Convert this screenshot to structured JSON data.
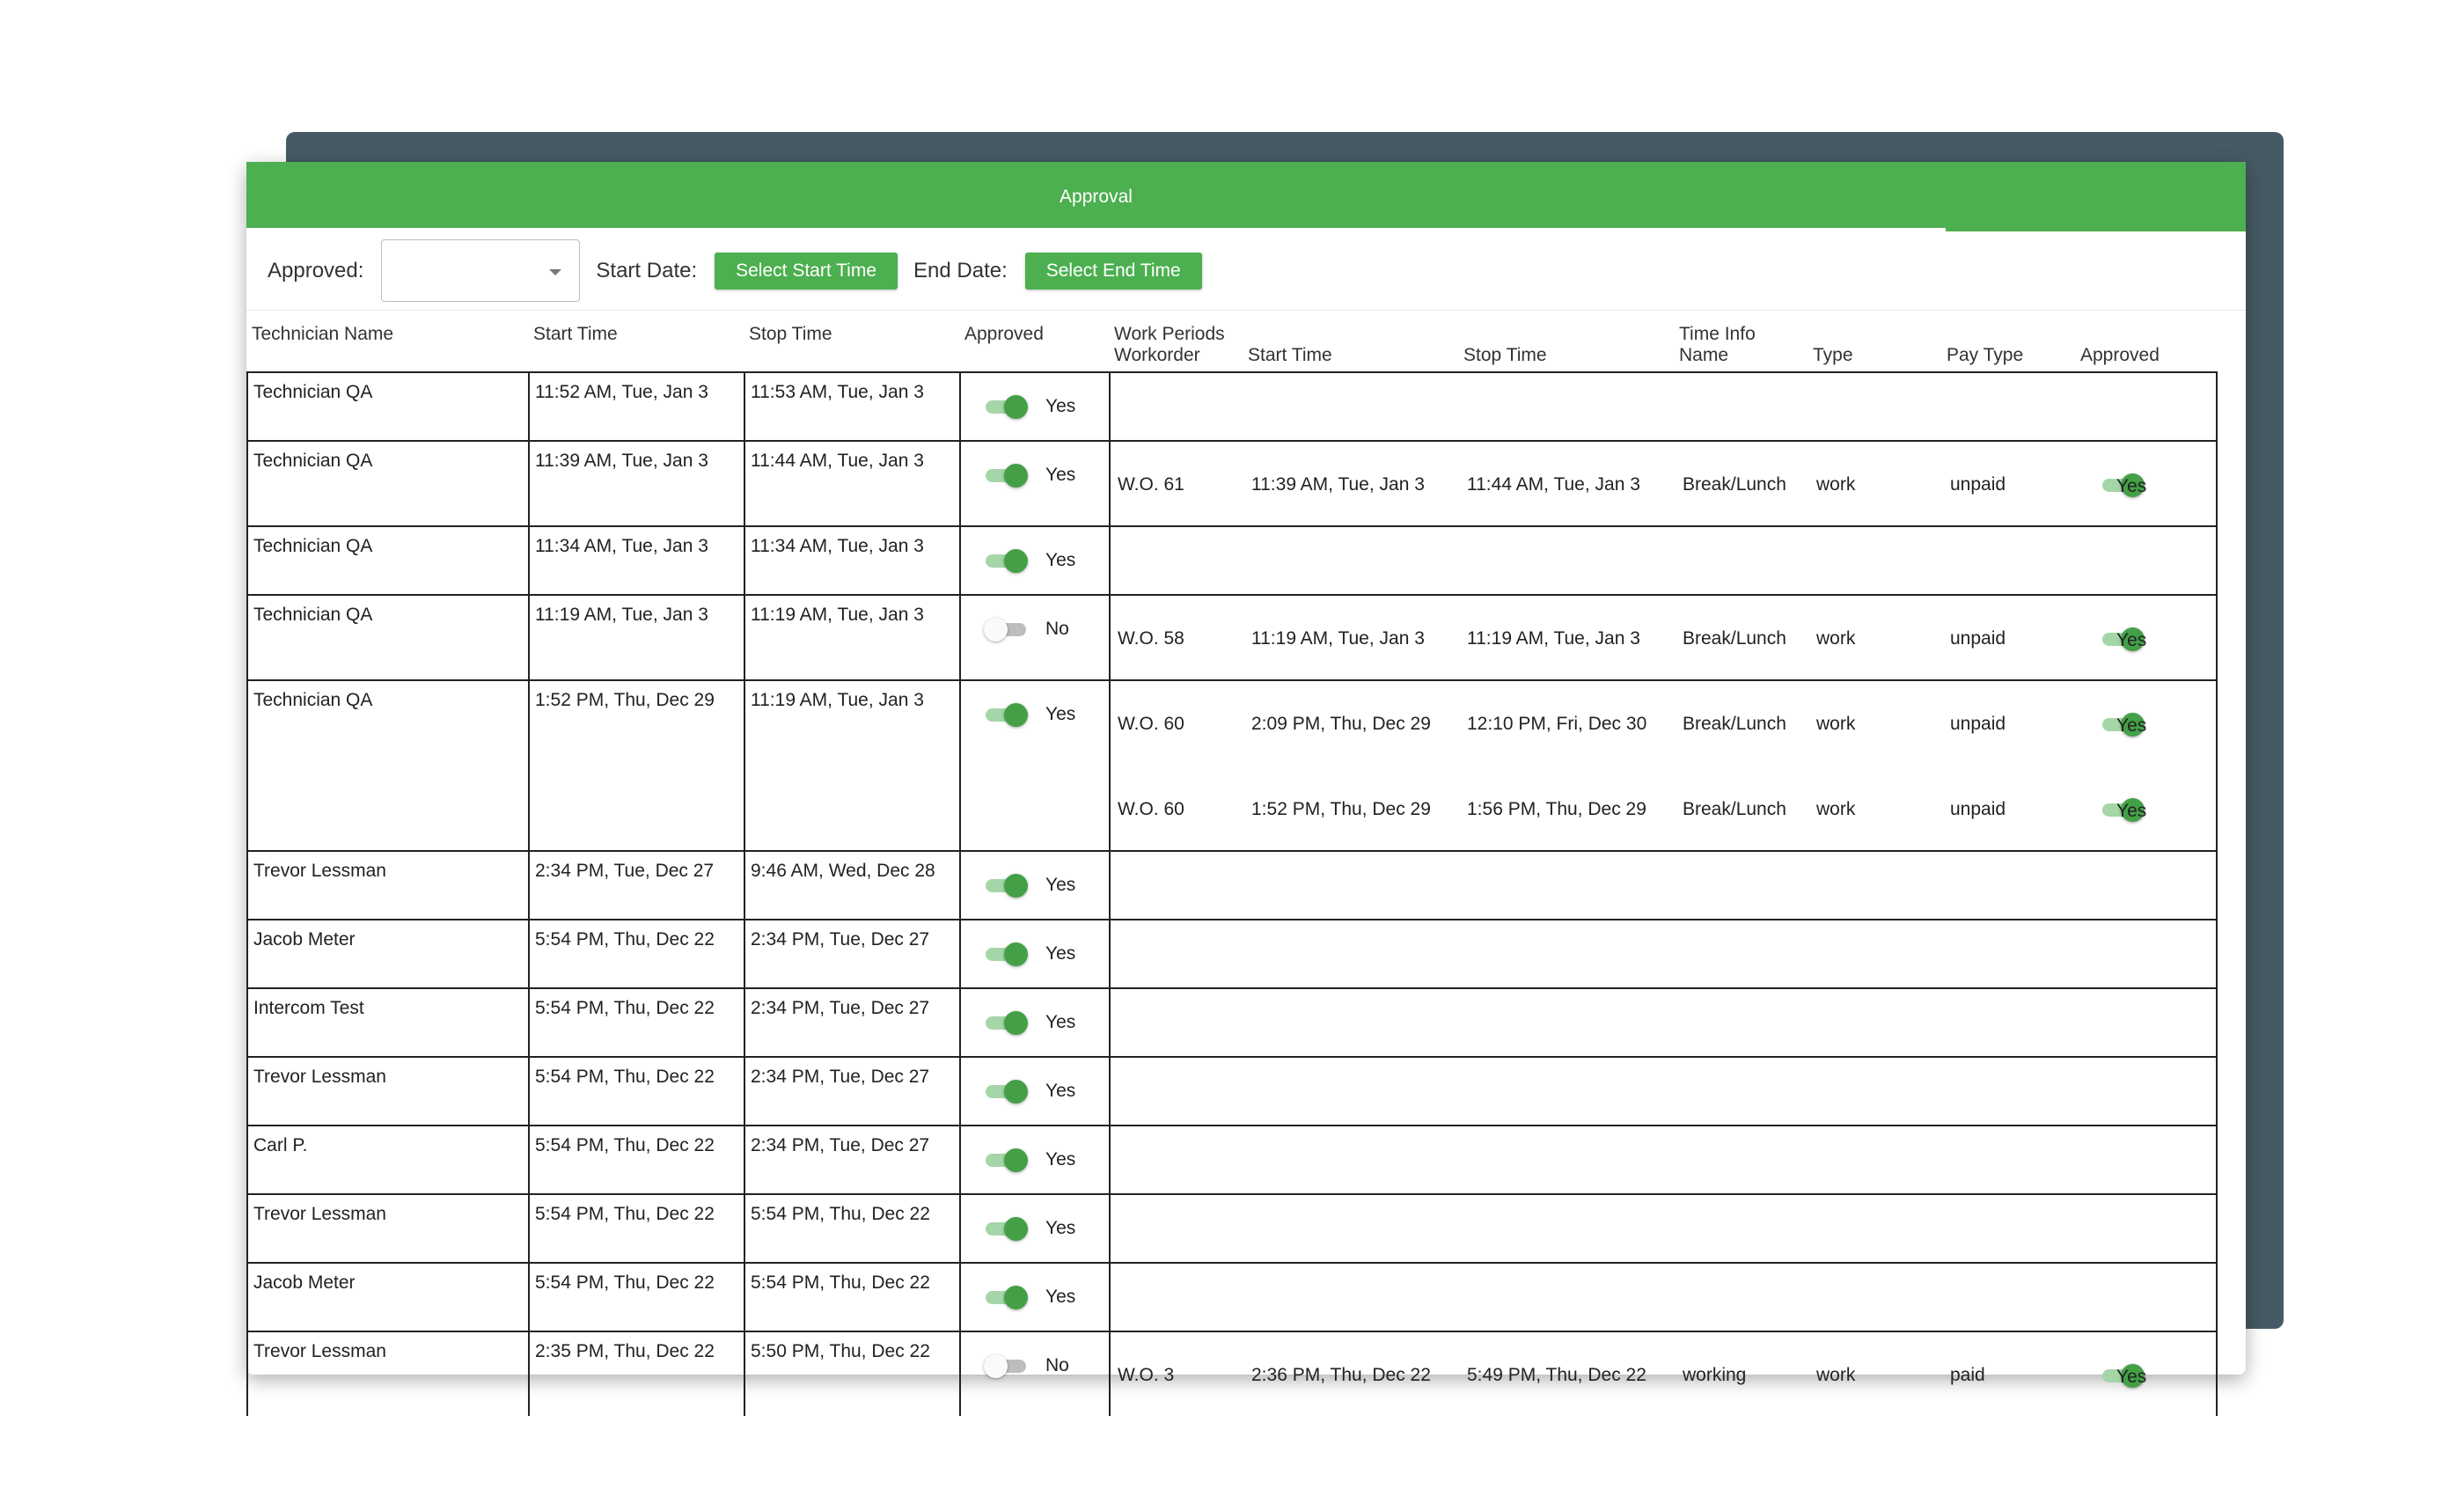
{
  "tabs": [
    {
      "label": "Approval"
    }
  ],
  "filters": {
    "approved_label": "Approved:",
    "approved_value": "",
    "start_label": "Start Date:",
    "start_button": "Select Start Time",
    "end_label": "End Date:",
    "end_button": "Select End Time"
  },
  "columns": {
    "technician": "Technician Name",
    "start": "Start Time",
    "stop": "Stop Time",
    "approved": "Approved",
    "work_periods": "Work Periods",
    "workorder": "Workorder",
    "wp_start": "Start Time",
    "wp_stop": "Stop Time",
    "time_info": "Time Info",
    "name": "Name",
    "type": "Type",
    "pay_type": "Pay Type",
    "wp_approved": "Approved"
  },
  "rows": [
    {
      "name": "Technician QA",
      "start": "11:52 AM, Tue, Jan 3",
      "stop": "11:53 AM, Tue, Jan 3",
      "approved": true,
      "approved_label": "Yes",
      "periods": []
    },
    {
      "name": "Technician QA",
      "start": "11:39 AM, Tue, Jan 3",
      "stop": "11:44 AM, Tue, Jan 3",
      "approved": true,
      "approved_label": "Yes",
      "periods": [
        {
          "workorder": "W.O. 61",
          "start": "11:39 AM, Tue, Jan 3",
          "stop": "11:44 AM, Tue, Jan 3",
          "name": "Break/Lunch",
          "type": "work",
          "pay_type": "unpaid",
          "approved": true,
          "approved_label": "Yes"
        }
      ]
    },
    {
      "name": "Technician QA",
      "start": "11:34 AM, Tue, Jan 3",
      "stop": "11:34 AM, Tue, Jan 3",
      "approved": true,
      "approved_label": "Yes",
      "periods": []
    },
    {
      "name": "Technician QA",
      "start": "11:19 AM, Tue, Jan 3",
      "stop": "11:19 AM, Tue, Jan 3",
      "approved": false,
      "approved_label": "No",
      "periods": [
        {
          "workorder": "W.O. 58",
          "start": "11:19 AM, Tue, Jan 3",
          "stop": "11:19 AM, Tue, Jan 3",
          "name": "Break/Lunch",
          "type": "work",
          "pay_type": "unpaid",
          "approved": true,
          "approved_label": "Yes"
        }
      ]
    },
    {
      "name": "Technician QA",
      "start": "1:52 PM, Thu, Dec 29",
      "stop": "11:19 AM, Tue, Jan 3",
      "approved": true,
      "approved_label": "Yes",
      "periods": [
        {
          "workorder": "W.O. 60",
          "start": "2:09 PM, Thu, Dec 29",
          "stop": "12:10 PM, Fri, Dec 30",
          "name": "Break/Lunch",
          "type": "work",
          "pay_type": "unpaid",
          "approved": true,
          "approved_label": "Yes"
        },
        {
          "workorder": "W.O. 60",
          "start": "1:52 PM, Thu, Dec 29",
          "stop": "1:56 PM, Thu, Dec 29",
          "name": "Break/Lunch",
          "type": "work",
          "pay_type": "unpaid",
          "approved": true,
          "approved_label": "Yes"
        }
      ]
    },
    {
      "name": "Trevor Lessman",
      "start": "2:34 PM, Tue, Dec 27",
      "stop": "9:46 AM, Wed, Dec 28",
      "approved": true,
      "approved_label": "Yes",
      "periods": []
    },
    {
      "name": "Jacob Meter",
      "start": "5:54 PM, Thu, Dec 22",
      "stop": "2:34 PM, Tue, Dec 27",
      "approved": true,
      "approved_label": "Yes",
      "periods": []
    },
    {
      "name": "Intercom Test",
      "start": "5:54 PM, Thu, Dec 22",
      "stop": "2:34 PM, Tue, Dec 27",
      "approved": true,
      "approved_label": "Yes",
      "periods": []
    },
    {
      "name": "Trevor Lessman",
      "start": "5:54 PM, Thu, Dec 22",
      "stop": "2:34 PM, Tue, Dec 27",
      "approved": true,
      "approved_label": "Yes",
      "periods": []
    },
    {
      "name": "Carl P.",
      "start": "5:54 PM, Thu, Dec 22",
      "stop": "2:34 PM, Tue, Dec 27",
      "approved": true,
      "approved_label": "Yes",
      "periods": []
    },
    {
      "name": "Trevor Lessman",
      "start": "5:54 PM, Thu, Dec 22",
      "stop": "5:54 PM, Thu, Dec 22",
      "approved": true,
      "approved_label": "Yes",
      "periods": []
    },
    {
      "name": "Jacob Meter",
      "start": "5:54 PM, Thu, Dec 22",
      "stop": "5:54 PM, Thu, Dec 22",
      "approved": true,
      "approved_label": "Yes",
      "periods": []
    },
    {
      "name": "Trevor Lessman",
      "start": "2:35 PM, Thu, Dec 22",
      "stop": "5:50 PM, Thu, Dec 22",
      "approved": false,
      "approved_label": "No",
      "periods": [
        {
          "workorder": "W.O. 3",
          "start": "2:36 PM, Thu, Dec 22",
          "stop": "5:49 PM, Thu, Dec 22",
          "name": "working",
          "type": "work",
          "pay_type": "paid",
          "approved": true,
          "approved_label": "Yes"
        }
      ]
    }
  ],
  "colors": {
    "accent": "#4caf50",
    "backdrop": "#455a64",
    "toggle_on": "#43a047",
    "toggle_track_on": "#a5d6a7"
  }
}
